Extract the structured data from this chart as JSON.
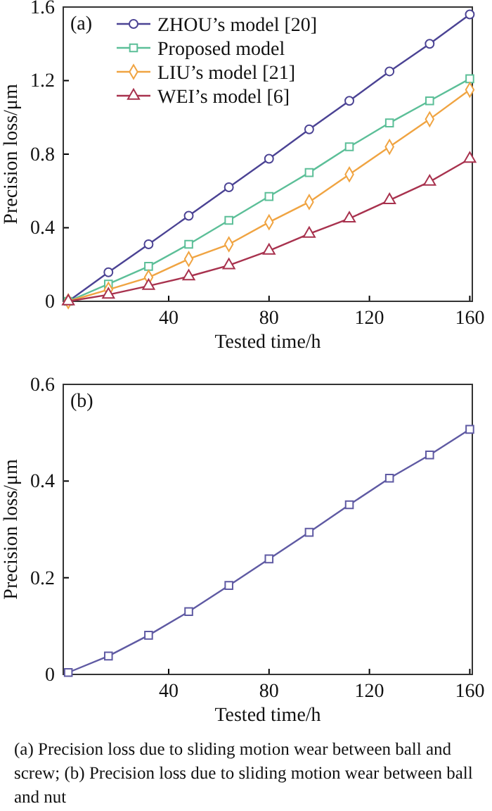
{
  "chart_data": [
    {
      "type": "line",
      "x": [
        0,
        16,
        32,
        48,
        64,
        80,
        96,
        112,
        128,
        144,
        160
      ],
      "xlabel": "Tested time/h",
      "ylabel": "Precision loss/μm",
      "annotations": [
        "(a)"
      ],
      "xlim": [
        -2,
        161
      ],
      "xticks": [
        40,
        80,
        120,
        160
      ],
      "ylim": [
        0,
        1.6
      ],
      "yticks": [
        0,
        0.4,
        0.8,
        1.2,
        1.6
      ],
      "legend": "top left",
      "grid": false,
      "series": [
        {
          "name": "ZHOU’s model [20]",
          "color": "#4b4394",
          "marker": "circle",
          "values": [
            0,
            0.158,
            0.31,
            0.465,
            0.62,
            0.775,
            0.935,
            1.09,
            1.25,
            1.4,
            1.56
          ]
        },
        {
          "name": "Proposed model",
          "color": "#5cbf98",
          "marker": "square",
          "values": [
            0,
            0.094,
            0.19,
            0.31,
            0.44,
            0.57,
            0.7,
            0.84,
            0.97,
            1.09,
            1.21
          ]
        },
        {
          "name": "LIU’s model [21]",
          "color": "#f0a442",
          "marker": "diamond",
          "values": [
            0,
            0.064,
            0.13,
            0.23,
            0.31,
            0.43,
            0.54,
            0.69,
            0.84,
            0.99,
            1.15
          ]
        },
        {
          "name": "WEI’s model [6]",
          "color": "#a8324e",
          "marker": "triangle",
          "values": [
            0,
            0.036,
            0.084,
            0.135,
            0.196,
            0.275,
            0.367,
            0.45,
            0.55,
            0.65,
            0.775
          ]
        }
      ]
    },
    {
      "type": "line",
      "x": [
        0,
        16,
        32,
        48,
        64,
        80,
        96,
        112,
        128,
        144,
        160
      ],
      "xlabel": "Tested time/h",
      "ylabel": "Precision loss/μm",
      "annotations": [
        "(b)",
        "(a) Precision loss due to sliding motion wear between ball and screw; (b) Precision loss due to sliding motion wear between ball and nut"
      ],
      "xlim": [
        -2,
        161
      ],
      "xticks": [
        40,
        80,
        120,
        160
      ],
      "ylim": [
        0,
        0.6
      ],
      "yticks": [
        0,
        0.2,
        0.4,
        0.6
      ],
      "legend": false,
      "grid": false,
      "marker": "square",
      "series": [
        {
          "color": "#5f5aa3",
          "values": [
            0.004,
            0.038,
            0.081,
            0.13,
            0.184,
            0.239,
            0.294,
            0.351,
            0.406,
            0.454,
            0.507
          ]
        }
      ]
    }
  ]
}
